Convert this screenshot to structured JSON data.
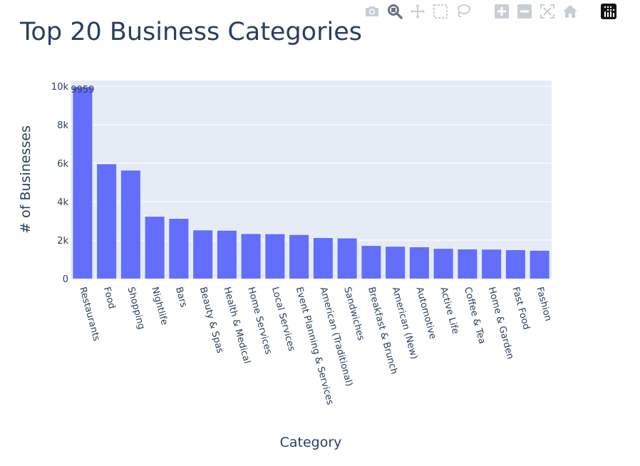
{
  "chart_data": {
    "type": "bar",
    "title": "Top 20 Business Categories",
    "xlabel": "Category",
    "ylabel": "# of Businesses",
    "categories": [
      "Restaurants",
      "Food",
      "Shopping",
      "Nightlife",
      "Bars",
      "Beauty & Spas",
      "Health & Medical",
      "Home Services",
      "Local Services",
      "Event Planning & Services",
      "American (Traditional)",
      "Sandwiches",
      "Breakfast & Brunch",
      "American (New)",
      "Automotive",
      "Active Life",
      "Coffee & Tea",
      "Home & Garden",
      "Fast Food",
      "Fashion"
    ],
    "values": [
      9959,
      5950,
      5620,
      3220,
      3110,
      2510,
      2490,
      2320,
      2310,
      2270,
      2110,
      2090,
      1700,
      1660,
      1630,
      1550,
      1520,
      1510,
      1480,
      1450
    ],
    "bar_labels": [
      "9959",
      "",
      "",
      "",
      "",
      "",
      "",
      "",
      "",
      "",
      "",
      "",
      "",
      "",
      "",
      "",
      "",
      "",
      "",
      ""
    ],
    "ylim": [
      0,
      10300
    ],
    "yticks": [
      0,
      2000,
      4000,
      6000,
      8000,
      10000
    ],
    "ytick_labels": [
      "0",
      "2k",
      "4k",
      "6k",
      "8k",
      "10k"
    ],
    "grid": true,
    "bar_color": "#636efa",
    "plot_bg": "#e5ecf6"
  },
  "modebar": {
    "icons": [
      "camera-icon",
      "zoom-icon",
      "pan-icon",
      "box-select-icon",
      "lasso-select-icon",
      "zoom-in-icon",
      "zoom-out-icon",
      "autoscale-icon",
      "reset-axes-icon",
      "plotly-logo-icon"
    ]
  }
}
